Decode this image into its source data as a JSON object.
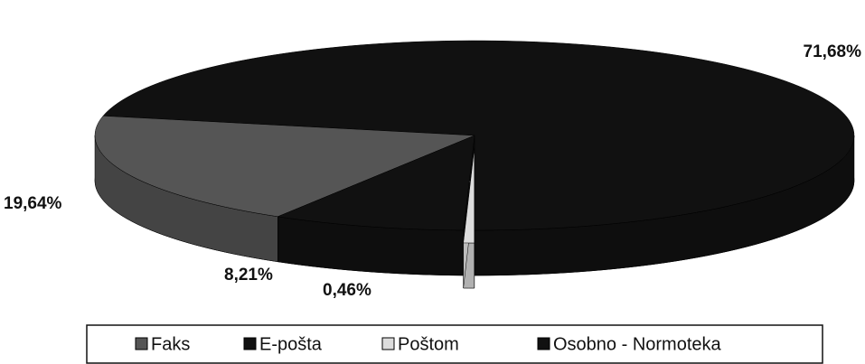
{
  "chart_data": {
    "type": "pie",
    "categories": [
      "Faks",
      "E-pošta",
      "Poštom",
      "Osobno - Normoteka"
    ],
    "values": [
      19.64,
      8.21,
      0.46,
      71.68
    ],
    "value_labels": [
      "19,64%",
      "8,21%",
      "0,46%",
      "71,68%"
    ],
    "colors": [
      "#555555",
      "#111111",
      "#dddddd",
      "#111111"
    ],
    "legend": "bottom"
  }
}
